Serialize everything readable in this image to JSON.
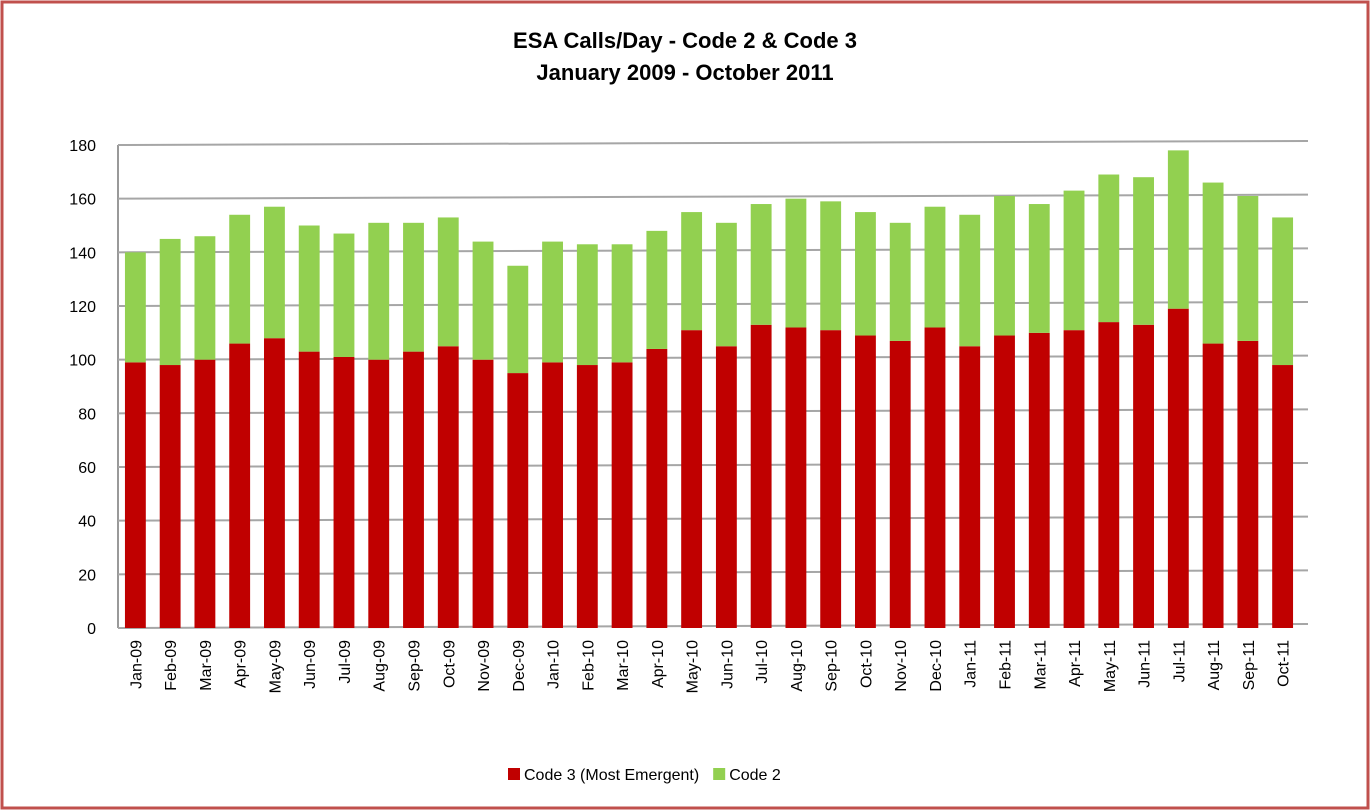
{
  "chart_data": {
    "type": "stacked_bar",
    "title": "ESA  Calls/Day - Code 2 & Code 3",
    "subtitle": "January 2009 - October 2011",
    "categories": [
      "Jan-09",
      "Feb-09",
      "Mar-09",
      "Apr-09",
      "May-09",
      "Jun-09",
      "Jul-09",
      "Aug-09",
      "Sep-09",
      "Oct-09",
      "Nov-09",
      "Dec-09",
      "Jan-10",
      "Feb-10",
      "Mar-10",
      "Apr-10",
      "May-10",
      "Jun-10",
      "Jul-10",
      "Aug-10",
      "Sep-10",
      "Oct-10",
      "Nov-10",
      "Dec-10",
      "Jan-11",
      "Feb-11",
      "Mar-11",
      "Apr-11",
      "May-11",
      "Jun-11",
      "Jul-11",
      "Aug-11",
      "Sep-11",
      "Oct-11"
    ],
    "series": [
      {
        "name": "Code 3 (Most Emergent)",
        "color": "#c00000",
        "values": [
          99,
          98,
          100,
          106,
          108,
          103,
          101,
          100,
          103,
          105,
          100,
          95,
          99,
          98,
          99,
          104,
          111,
          105,
          113,
          112,
          111,
          109,
          107,
          112,
          105,
          109,
          110,
          111,
          114,
          113,
          119,
          106,
          107,
          98
        ]
      },
      {
        "name": "Code 2",
        "color": "#92d050",
        "values": [
          41,
          47,
          46,
          48,
          49,
          47,
          46,
          51,
          48,
          48,
          44,
          40,
          45,
          45,
          44,
          44,
          44,
          46,
          45,
          48,
          48,
          46,
          44,
          45,
          49,
          52,
          48,
          52,
          55,
          55,
          59,
          60,
          54,
          55
        ]
      }
    ],
    "ylim": [
      0,
      180
    ],
    "yticks": [
      0,
      20,
      40,
      60,
      80,
      100,
      120,
      140,
      160,
      180
    ],
    "grid": true,
    "legend": "bottom"
  }
}
